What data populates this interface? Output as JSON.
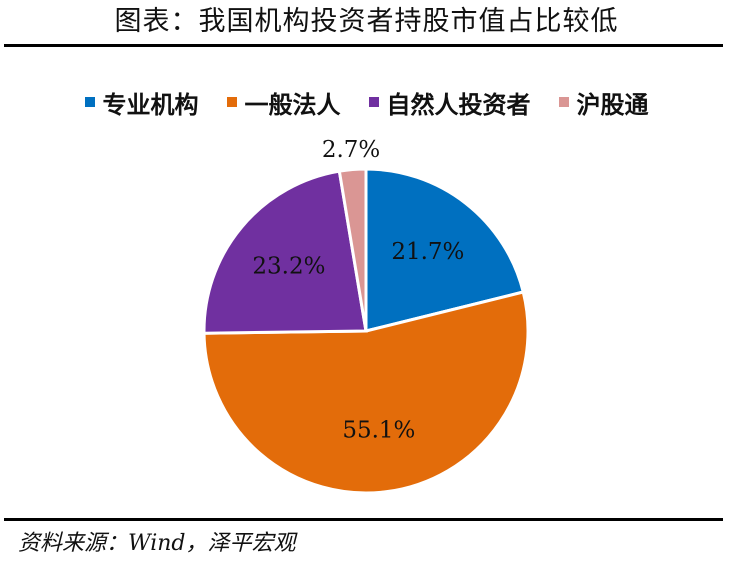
{
  "title": "图表：我国机构投资者持股市值占比较低",
  "source": "资料来源：Wind，泽平宏观",
  "chart_data": {
    "type": "pie",
    "start_angle_deg": 0,
    "direction": "clockwise",
    "slices": [
      {
        "label": "专业机构",
        "value": 21.7,
        "display": "21.7%",
        "color": "#0070C0"
      },
      {
        "label": "一般法人",
        "value": 55.1,
        "display": "55.1%",
        "color": "#E36C0A"
      },
      {
        "label": "自然人投资者",
        "value": 23.2,
        "display": "23.2%",
        "color": "#7030A0"
      },
      {
        "label": "沪股通",
        "value": 2.7,
        "display": "2.7%",
        "color": "#DA9694"
      }
    ],
    "legend_position": "top"
  }
}
